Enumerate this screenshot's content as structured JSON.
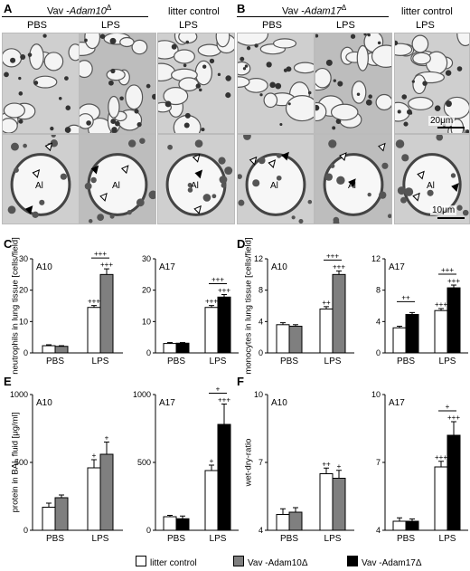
{
  "panels": {
    "A": "A",
    "B": "B",
    "C": "C",
    "D": "D",
    "E": "E",
    "F": "F"
  },
  "headers": {
    "a_group_prefix": "Vav -",
    "a_group_gene": "Adam10",
    "a_group_sup": "Δ",
    "b_group_prefix": "Vav -",
    "b_group_gene": "Adam17",
    "b_group_sup": "Δ",
    "litter_control": "litter control",
    "pbs": "PBS",
    "lps": "LPS"
  },
  "micrographs": {
    "scale_top": "20μm",
    "scale_bottom": "10μm",
    "alveolus_label": "Al"
  },
  "legend": {
    "litter_control": "litter control",
    "vav_adam10": "Vav -Adam10Δ",
    "vav_adam17": "Vav -Adam17Δ"
  },
  "colors": {
    "control": "#ffffff",
    "adam10": "#7f7f7f",
    "adam17": "#000000"
  },
  "chart_data": [
    {
      "id": "C1",
      "type": "bar",
      "title": "A10",
      "ylabel": "neutrophils in lung tissue [cells/field]",
      "ylim": [
        0,
        30
      ],
      "ticks": [
        0,
        10,
        20,
        30
      ],
      "categories": [
        "PBS",
        "LPS"
      ],
      "series": [
        {
          "key": "control",
          "values": [
            2.3,
            14.5
          ],
          "err": [
            0.3,
            0.6
          ]
        },
        {
          "key": "adam10",
          "values": [
            2.1,
            25
          ],
          "err": [
            0.2,
            1.8
          ]
        }
      ],
      "annotations": [
        {
          "cat": 1,
          "series": 0,
          "text": "+++"
        },
        {
          "cat": 1,
          "series": 1,
          "text": "+++"
        }
      ],
      "brackets": [
        {
          "cat": 1,
          "text": "+++"
        }
      ]
    },
    {
      "id": "C2",
      "type": "bar",
      "title": "A17",
      "ylabel": "",
      "ylim": [
        0,
        30
      ],
      "ticks": [
        0,
        10,
        20,
        30
      ],
      "categories": [
        "PBS",
        "LPS"
      ],
      "series": [
        {
          "key": "control",
          "values": [
            3.0,
            14.5
          ],
          "err": [
            0.3,
            0.6
          ]
        },
        {
          "key": "adam17",
          "values": [
            3.1,
            17.8
          ],
          "err": [
            0.2,
            0.8
          ]
        }
      ],
      "annotations": [
        {
          "cat": 1,
          "series": 0,
          "text": "+++"
        },
        {
          "cat": 1,
          "series": 1,
          "text": "+++"
        }
      ],
      "brackets": [
        {
          "cat": 1,
          "text": "+++"
        }
      ]
    },
    {
      "id": "D1",
      "type": "bar",
      "title": "A10",
      "ylabel": "monocytes in lung tissue [cells/field]",
      "ylim": [
        0,
        12
      ],
      "ticks": [
        0,
        4,
        8,
        12
      ],
      "categories": [
        "PBS",
        "LPS"
      ],
      "series": [
        {
          "key": "control",
          "values": [
            3.6,
            5.6
          ],
          "err": [
            0.25,
            0.3
          ]
        },
        {
          "key": "adam10",
          "values": [
            3.4,
            10.0
          ],
          "err": [
            0.2,
            0.45
          ]
        }
      ],
      "annotations": [
        {
          "cat": 1,
          "series": 0,
          "text": "++"
        },
        {
          "cat": 1,
          "series": 1,
          "text": "+++"
        }
      ],
      "brackets": [
        {
          "cat": 1,
          "text": "+++"
        }
      ]
    },
    {
      "id": "D2",
      "type": "bar",
      "title": "A17",
      "ylabel": "",
      "ylim": [
        0,
        12
      ],
      "ticks": [
        0,
        4,
        8,
        12
      ],
      "categories": [
        "PBS",
        "LPS"
      ],
      "series": [
        {
          "key": "control",
          "values": [
            3.2,
            5.4
          ],
          "err": [
            0.2,
            0.25
          ]
        },
        {
          "key": "adam17",
          "values": [
            4.9,
            8.3
          ],
          "err": [
            0.25,
            0.35
          ]
        }
      ],
      "annotations": [
        {
          "cat": 1,
          "series": 0,
          "text": "+++"
        },
        {
          "cat": 1,
          "series": 1,
          "text": "+++"
        }
      ],
      "brackets": [
        {
          "cat": 0,
          "text": "++"
        },
        {
          "cat": 1,
          "text": "+++"
        }
      ]
    },
    {
      "id": "E1",
      "type": "bar",
      "title": "A10",
      "ylabel": "protein in BAL fluid [μg/ml]",
      "ylim": [
        0,
        1000
      ],
      "ticks": [
        0,
        500,
        1000
      ],
      "categories": [
        "PBS",
        "LPS"
      ],
      "series": [
        {
          "key": "control",
          "values": [
            170,
            460
          ],
          "err": [
            30,
            60
          ]
        },
        {
          "key": "adam10",
          "values": [
            240,
            560
          ],
          "err": [
            20,
            90
          ]
        }
      ],
      "annotations": [
        {
          "cat": 1,
          "series": 0,
          "text": "+"
        },
        {
          "cat": 1,
          "series": 1,
          "text": "+"
        }
      ],
      "brackets": []
    },
    {
      "id": "E2",
      "type": "bar",
      "title": "A17",
      "ylabel": "",
      "ylim": [
        0,
        1000
      ],
      "ticks": [
        0,
        500,
        1000
      ],
      "categories": [
        "PBS",
        "LPS"
      ],
      "series": [
        {
          "key": "control",
          "values": [
            100,
            440
          ],
          "err": [
            10,
            40
          ]
        },
        {
          "key": "adam17",
          "values": [
            85,
            780
          ],
          "err": [
            20,
            150
          ]
        }
      ],
      "annotations": [
        {
          "cat": 1,
          "series": 0,
          "text": "+"
        },
        {
          "cat": 1,
          "series": 1,
          "text": "+++"
        }
      ],
      "brackets": [
        {
          "cat": 1,
          "text": "+"
        }
      ]
    },
    {
      "id": "F1",
      "type": "bar",
      "title": "A10",
      "ylabel": "wet-dry-ratio",
      "ylim": [
        4,
        10
      ],
      "ticks": [
        4,
        7,
        10
      ],
      "categories": [
        "PBS",
        "LPS"
      ],
      "series": [
        {
          "key": "control",
          "values": [
            4.7,
            6.5
          ],
          "err": [
            0.25,
            0.25
          ]
        },
        {
          "key": "adam10",
          "values": [
            4.8,
            6.3
          ],
          "err": [
            0.2,
            0.35
          ]
        }
      ],
      "annotations": [
        {
          "cat": 1,
          "series": 0,
          "text": "++"
        },
        {
          "cat": 1,
          "series": 1,
          "text": "+"
        }
      ],
      "brackets": []
    },
    {
      "id": "F2",
      "type": "bar",
      "title": "A17",
      "ylabel": "",
      "ylim": [
        4,
        10
      ],
      "ticks": [
        4,
        7,
        10
      ],
      "categories": [
        "PBS",
        "LPS"
      ],
      "series": [
        {
          "key": "control",
          "values": [
            4.4,
            6.8
          ],
          "err": [
            0.15,
            0.25
          ]
        },
        {
          "key": "adam17",
          "values": [
            4.4,
            8.2
          ],
          "err": [
            0.1,
            0.6
          ]
        }
      ],
      "annotations": [
        {
          "cat": 1,
          "series": 0,
          "text": "+++"
        },
        {
          "cat": 1,
          "series": 1,
          "text": "+++"
        }
      ],
      "brackets": [
        {
          "cat": 1,
          "text": "+"
        }
      ]
    }
  ]
}
